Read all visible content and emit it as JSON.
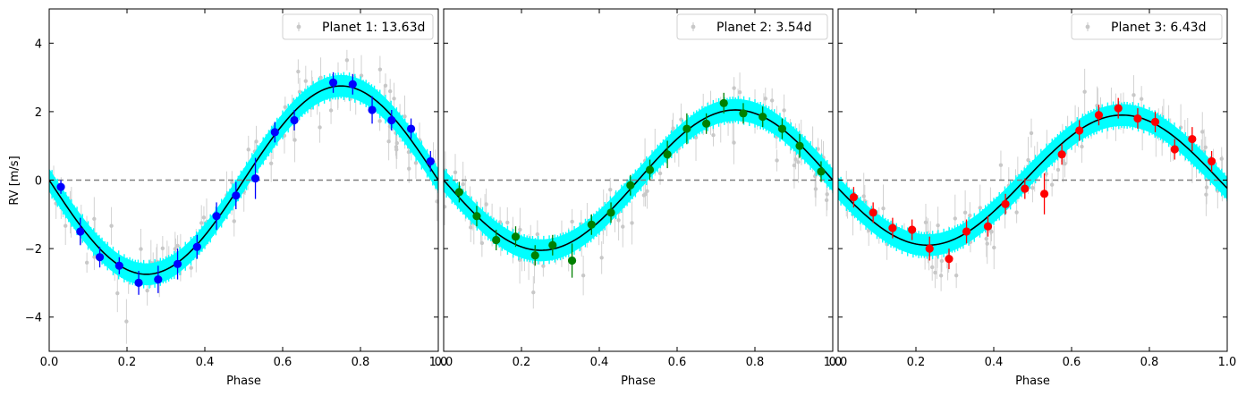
{
  "figure": {
    "ylabel": "RV [m/s]"
  },
  "chart_data": [
    {
      "type": "scatter",
      "legend": "Planet 1: 13.63d",
      "xlabel": "Phase",
      "ylabel": "RV [m/s]",
      "xlim": [
        0,
        1
      ],
      "ylim": [
        -5,
        5
      ],
      "xticks": [
        "0.0",
        "0.2",
        "0.4",
        "0.6",
        "0.8",
        "1.0"
      ],
      "yticks": [
        "−4",
        "−2",
        "0",
        "2",
        "4"
      ],
      "legend_position": "top-right",
      "colors": {
        "binned": "#0000ff",
        "band": "#00ffff",
        "model": "#000000",
        "raw": "#c8c8c8",
        "zero_line": "#808080"
      },
      "model": {
        "amplitude": 2.75,
        "phase_of_max": 0.75
      },
      "binned": {
        "x": [
          0.03,
          0.08,
          0.13,
          0.18,
          0.23,
          0.28,
          0.33,
          0.38,
          0.43,
          0.48,
          0.53,
          0.58,
          0.63,
          0.73,
          0.78,
          0.83,
          0.88,
          0.93,
          0.98
        ],
        "y": [
          -0.2,
          -1.5,
          -2.25,
          -2.5,
          -3.0,
          -2.9,
          -2.45,
          -1.95,
          -1.05,
          -0.45,
          0.05,
          1.4,
          1.75,
          2.85,
          2.8,
          2.05,
          1.75,
          1.5,
          0.55
        ],
        "err": [
          0.2,
          0.4,
          0.3,
          0.25,
          0.35,
          0.4,
          0.45,
          0.35,
          0.4,
          0.4,
          0.6,
          0.3,
          0.3,
          0.3,
          0.3,
          0.4,
          0.3,
          0.3,
          0.3
        ]
      }
    },
    {
      "type": "scatter",
      "legend": "Planet 2: 3.54d",
      "xlabel": "Phase",
      "xlim": [
        0,
        1
      ],
      "ylim": [
        -5,
        5
      ],
      "xticks": [
        "0.0",
        "0.2",
        "0.4",
        "0.6",
        "0.8",
        "1.0"
      ],
      "legend_position": "top-right",
      "colors": {
        "binned": "#008000",
        "band": "#00ffff",
        "model": "#000000",
        "raw": "#c8c8c8",
        "zero_line": "#808080"
      },
      "model": {
        "amplitude": 2.05,
        "phase_of_max": 0.75
      },
      "binned": {
        "x": [
          0.04,
          0.085,
          0.135,
          0.185,
          0.235,
          0.28,
          0.33,
          0.38,
          0.43,
          0.48,
          0.53,
          0.575,
          0.625,
          0.675,
          0.72,
          0.77,
          0.82,
          0.87,
          0.915,
          0.97
        ],
        "y": [
          -0.35,
          -1.05,
          -1.75,
          -1.65,
          -2.2,
          -1.9,
          -2.35,
          -1.3,
          -0.95,
          -0.15,
          0.3,
          0.75,
          1.5,
          1.65,
          2.25,
          1.95,
          1.85,
          1.5,
          1.0,
          0.25
        ],
        "err": [
          0.3,
          0.3,
          0.3,
          0.3,
          0.3,
          0.3,
          0.5,
          0.3,
          0.3,
          0.3,
          0.3,
          0.4,
          0.45,
          0.3,
          0.3,
          0.3,
          0.3,
          0.3,
          0.35,
          0.3
        ]
      }
    },
    {
      "type": "scatter",
      "legend": "Planet 3: 6.43d",
      "xlabel": "Phase",
      "xlim": [
        0,
        1
      ],
      "ylim": [
        -5,
        5
      ],
      "xticks": [
        "0.0",
        "0.2",
        "0.4",
        "0.6",
        "0.8",
        "1.0"
      ],
      "legend_position": "top-right",
      "colors": {
        "binned": "#ff0000",
        "band": "#00ffff",
        "model": "#000000",
        "raw": "#c8c8c8",
        "zero_line": "#808080"
      },
      "model": {
        "amplitude": 1.9,
        "phase_of_max": 0.77
      },
      "binned": {
        "x": [
          0.04,
          0.09,
          0.14,
          0.19,
          0.235,
          0.285,
          0.33,
          0.385,
          0.43,
          0.48,
          0.53,
          0.575,
          0.62,
          0.67,
          0.72,
          0.77,
          0.815,
          0.865,
          0.91,
          0.96
        ],
        "y": [
          -0.5,
          -0.95,
          -1.4,
          -1.45,
          -2.0,
          -2.3,
          -1.5,
          -1.35,
          -0.7,
          -0.25,
          -0.4,
          0.75,
          1.45,
          1.9,
          2.1,
          1.8,
          1.7,
          0.9,
          1.2,
          0.55
        ],
        "err": [
          0.3,
          0.3,
          0.3,
          0.3,
          0.35,
          0.3,
          0.35,
          0.3,
          0.3,
          0.3,
          0.6,
          0.3,
          0.3,
          0.3,
          0.3,
          0.3,
          0.3,
          0.3,
          0.35,
          0.3
        ]
      }
    }
  ]
}
